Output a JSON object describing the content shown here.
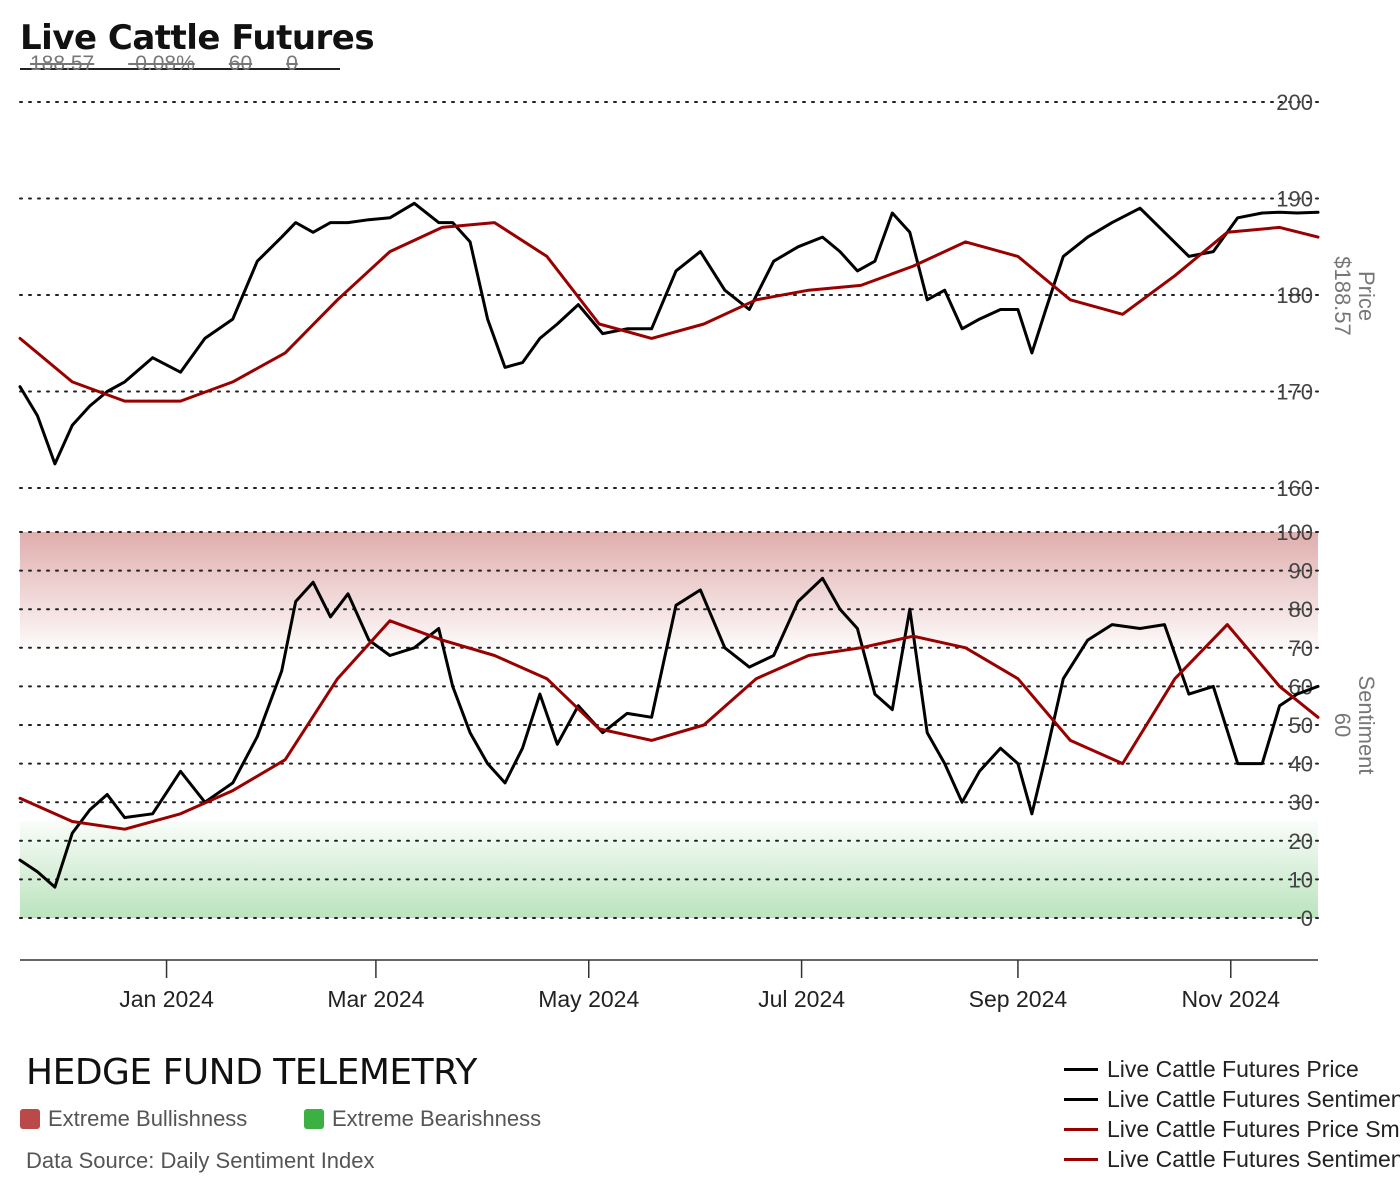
{
  "header": {
    "title": "Live Cattle Futures",
    "stats": [
      "188.57",
      "-0.08%",
      "60",
      "0"
    ]
  },
  "footer": {
    "brand": "HEDGE FUND TELEMETRY",
    "key_bull": "Extreme Bullishness",
    "key_bear": "Extreme Bearishness",
    "source": "Data Source: Daily Sentiment Index"
  },
  "colors": {
    "raw": "#000000",
    "smoothed": "#990000",
    "bull": "#b94a48",
    "bear": "#3cb043"
  },
  "chart_data": [
    {
      "type": "line",
      "ylabel_line1": "Price",
      "ylabel_line2": "$188.57",
      "ylim": [
        160,
        200
      ],
      "yticks": [
        160,
        170,
        180,
        190,
        200
      ],
      "grid": true,
      "x_range": [
        "2023-11-20",
        "2024-11-26"
      ],
      "series": [
        {
          "name": "Live Cattle Futures Price",
          "x": [
            "2023-11-20",
            "2023-11-25",
            "2023-11-30",
            "2023-12-05",
            "2023-12-10",
            "2023-12-15",
            "2023-12-20",
            "2023-12-28",
            "2024-01-05",
            "2024-01-12",
            "2024-01-20",
            "2024-01-27",
            "2024-02-03",
            "2024-02-07",
            "2024-02-12",
            "2024-02-17",
            "2024-02-22",
            "2024-02-28",
            "2024-03-05",
            "2024-03-12",
            "2024-03-19",
            "2024-03-23",
            "2024-03-28",
            "2024-04-02",
            "2024-04-07",
            "2024-04-12",
            "2024-04-17",
            "2024-04-22",
            "2024-04-28",
            "2024-05-05",
            "2024-05-12",
            "2024-05-19",
            "2024-05-26",
            "2024-06-02",
            "2024-06-09",
            "2024-06-16",
            "2024-06-23",
            "2024-06-30",
            "2024-07-07",
            "2024-07-12",
            "2024-07-17",
            "2024-07-22",
            "2024-07-27",
            "2024-08-01",
            "2024-08-06",
            "2024-08-11",
            "2024-08-16",
            "2024-08-21",
            "2024-08-27",
            "2024-09-01",
            "2024-09-05",
            "2024-09-09",
            "2024-09-14",
            "2024-09-21",
            "2024-09-28",
            "2024-10-06",
            "2024-10-13",
            "2024-10-20",
            "2024-10-27",
            "2024-11-03",
            "2024-11-10",
            "2024-11-15",
            "2024-11-20",
            "2024-11-26"
          ],
          "y": [
            170.5,
            167.5,
            162.5,
            166.5,
            168.5,
            170,
            171,
            173.5,
            172,
            175.5,
            177.5,
            183.5,
            186,
            187.5,
            186.5,
            187.5,
            187.5,
            187.8,
            188,
            189.5,
            187.5,
            187.5,
            185.5,
            177.5,
            172.5,
            173,
            175.5,
            177,
            179,
            176,
            176.5,
            176.5,
            182.5,
            184.5,
            180.5,
            178.5,
            183.5,
            185,
            186,
            184.5,
            182.5,
            183.5,
            188.5,
            186.5,
            179.5,
            180.5,
            176.5,
            177.5,
            178.5,
            178.5,
            174,
            178.5,
            184,
            186,
            187.5,
            189,
            186.5,
            184,
            184.5,
            188,
            188.5,
            188.57,
            188.5,
            188.57
          ]
        },
        {
          "name": "Live Cattle Futures Price Smoothed",
          "x": [
            "2023-11-20",
            "2023-12-05",
            "2023-12-20",
            "2024-01-05",
            "2024-01-20",
            "2024-02-04",
            "2024-02-19",
            "2024-03-05",
            "2024-03-20",
            "2024-04-04",
            "2024-04-19",
            "2024-05-04",
            "2024-05-19",
            "2024-06-03",
            "2024-06-18",
            "2024-07-03",
            "2024-07-18",
            "2024-08-02",
            "2024-08-17",
            "2024-09-01",
            "2024-09-16",
            "2024-10-01",
            "2024-10-16",
            "2024-10-31",
            "2024-11-15",
            "2024-11-26"
          ],
          "y": [
            175.5,
            171,
            169,
            169,
            171,
            174,
            179.5,
            184.5,
            187,
            187.5,
            184,
            177,
            175.5,
            177,
            179.5,
            180.5,
            181,
            183,
            185.5,
            184,
            179.5,
            178,
            182,
            186.5,
            187,
            186
          ]
        }
      ]
    },
    {
      "type": "line",
      "ylabel_line1": "Sentiment",
      "ylabel_line2": "60",
      "ylim": [
        0,
        100
      ],
      "yticks": [
        0,
        10,
        20,
        30,
        40,
        50,
        60,
        70,
        80,
        90,
        100
      ],
      "grid": true,
      "zones": {
        "extreme_bullishness": [
          70,
          100
        ],
        "extreme_bearishness": [
          0,
          25
        ]
      },
      "series": [
        {
          "name": "Live Cattle Futures Sentiment",
          "x": [
            "2023-11-20",
            "2023-11-25",
            "2023-11-30",
            "2023-12-05",
            "2023-12-10",
            "2023-12-15",
            "2023-12-20",
            "2023-12-28",
            "2024-01-05",
            "2024-01-12",
            "2024-01-20",
            "2024-01-27",
            "2024-02-03",
            "2024-02-07",
            "2024-02-12",
            "2024-02-17",
            "2024-02-22",
            "2024-02-28",
            "2024-03-05",
            "2024-03-12",
            "2024-03-19",
            "2024-03-23",
            "2024-03-28",
            "2024-04-02",
            "2024-04-07",
            "2024-04-12",
            "2024-04-17",
            "2024-04-22",
            "2024-04-28",
            "2024-05-05",
            "2024-05-12",
            "2024-05-19",
            "2024-05-26",
            "2024-06-02",
            "2024-06-09",
            "2024-06-16",
            "2024-06-23",
            "2024-06-30",
            "2024-07-07",
            "2024-07-12",
            "2024-07-17",
            "2024-07-22",
            "2024-07-27",
            "2024-08-01",
            "2024-08-06",
            "2024-08-11",
            "2024-08-16",
            "2024-08-21",
            "2024-08-27",
            "2024-09-01",
            "2024-09-05",
            "2024-09-09",
            "2024-09-14",
            "2024-09-21",
            "2024-09-28",
            "2024-10-06",
            "2024-10-13",
            "2024-10-20",
            "2024-10-27",
            "2024-11-03",
            "2024-11-10",
            "2024-11-15",
            "2024-11-20",
            "2024-11-26"
          ],
          "y": [
            15,
            12,
            8,
            22,
            28,
            32,
            26,
            27,
            38,
            30,
            35,
            47,
            64,
            82,
            87,
            78,
            84,
            72,
            68,
            70,
            75,
            60,
            48,
            40,
            35,
            44,
            58,
            45,
            55,
            48,
            53,
            52,
            81,
            85,
            70,
            65,
            68,
            82,
            88,
            80,
            75,
            58,
            54,
            80,
            48,
            40,
            30,
            38,
            44,
            40,
            27,
            42,
            62,
            72,
            76,
            75,
            76,
            58,
            60,
            40,
            40,
            55,
            58,
            60
          ]
        },
        {
          "name": "Live Cattle Futures Sentiment Smoothed",
          "x": [
            "2023-11-20",
            "2023-12-05",
            "2023-12-20",
            "2024-01-05",
            "2024-01-20",
            "2024-02-04",
            "2024-02-19",
            "2024-03-05",
            "2024-03-20",
            "2024-04-04",
            "2024-04-19",
            "2024-05-04",
            "2024-05-19",
            "2024-06-03",
            "2024-06-18",
            "2024-07-03",
            "2024-07-18",
            "2024-08-02",
            "2024-08-17",
            "2024-09-01",
            "2024-09-16",
            "2024-10-01",
            "2024-10-16",
            "2024-10-31",
            "2024-11-15",
            "2024-11-26"
          ],
          "y": [
            31,
            25,
            23,
            27,
            33,
            41,
            62,
            77,
            72,
            68,
            62,
            49,
            46,
            50,
            62,
            68,
            70,
            73,
            70,
            62,
            46,
            40,
            62,
            76,
            60,
            52
          ]
        }
      ]
    }
  ],
  "x_axis": {
    "tick_labels": [
      "Jan 2024",
      "Mar 2024",
      "May 2024",
      "Jul 2024",
      "Sep 2024",
      "Nov 2024"
    ],
    "tick_dates": [
      "2024-01-01",
      "2024-03-01",
      "2024-05-01",
      "2024-07-01",
      "2024-09-01",
      "2024-11-01"
    ]
  },
  "legend": [
    {
      "label": "Live Cattle Futures Price",
      "color": "#000000"
    },
    {
      "label": "Live Cattle Futures Sentiment",
      "color": "#000000"
    },
    {
      "label": "Live Cattle Futures Price Smoothed",
      "color": "#990000"
    },
    {
      "label": "Live Cattle Futures Sentiment Smoothed",
      "color": "#990000"
    }
  ]
}
